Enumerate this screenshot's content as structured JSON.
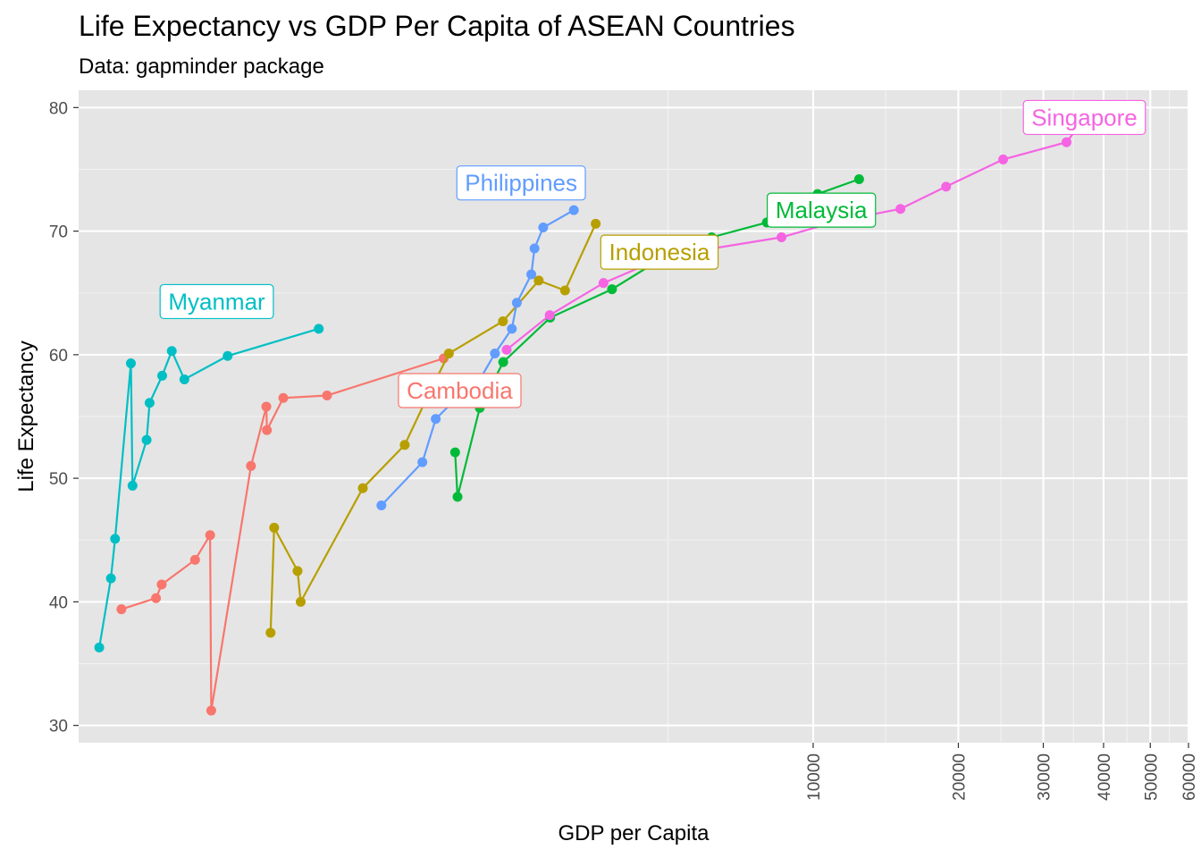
{
  "chart_data": {
    "type": "line",
    "title": "Life Expectancy vs GDP Per Capita of ASEAN Countries",
    "subtitle": "Data: gapminder package",
    "xlabel": "GDP per Capita",
    "ylabel": "Life Expectancy",
    "x_scale": "log10",
    "xlim": [
      300,
      60000
    ],
    "ylim": [
      28.6,
      81.4
    ],
    "x_ticks": [
      10000,
      20000,
      30000,
      40000,
      50000,
      60000
    ],
    "x_tick_labels": [
      "10000",
      "20000",
      "30000",
      "40000",
      "50000",
      "60000"
    ],
    "y_ticks": [
      30,
      40,
      50,
      60,
      70,
      80
    ],
    "y_tick_labels": [
      "30",
      "40",
      "50",
      "60",
      "70",
      "80"
    ],
    "grid": true,
    "legend": "none",
    "series": [
      {
        "name": "Cambodia",
        "label": "Cambodia",
        "color": "#F8766D",
        "label_at": [
          1850,
          57.1
        ],
        "points": [
          [
            368,
            39.4
          ],
          [
            434,
            40.3
          ],
          [
            446,
            41.4
          ],
          [
            523,
            43.4
          ],
          [
            562,
            45.4
          ],
          [
            565,
            31.2
          ],
          [
            683,
            51.0
          ],
          [
            735,
            55.8
          ],
          [
            737,
            53.9
          ],
          [
            797,
            56.5
          ],
          [
            982,
            56.7
          ],
          [
            1714,
            59.7
          ]
        ]
      },
      {
        "name": "Indonesia",
        "label": "Indonesia",
        "color": "#B79F00",
        "label_at": [
          4800,
          68.3
        ],
        "points": [
          [
            750,
            37.5
          ],
          [
            763,
            46.0
          ],
          [
            853,
            42.5
          ],
          [
            866,
            40.0
          ],
          [
            1165,
            49.2
          ],
          [
            1423,
            52.7
          ],
          [
            1569,
            56.2
          ],
          [
            1757,
            60.1
          ],
          [
            2274,
            62.7
          ],
          [
            2698,
            66.0
          ],
          [
            3059,
            65.2
          ],
          [
            3541,
            70.6
          ]
        ]
      },
      {
        "name": "Malaysia",
        "label": "Malaysia",
        "color": "#00BA38",
        "label_at": [
          10400,
          71.7
        ],
        "points": [
          [
            1831,
            48.5
          ],
          [
            1810,
            52.1
          ],
          [
            2036,
            55.7
          ],
          [
            2277,
            59.4
          ],
          [
            2849,
            63.0
          ],
          [
            3828,
            65.3
          ],
          [
            4954,
            68.0
          ],
          [
            6160,
            69.5
          ],
          [
            8017,
            70.7
          ],
          [
            10131,
            71.9
          ],
          [
            10212,
            73.0
          ],
          [
            12452,
            74.2
          ]
        ]
      },
      {
        "name": "Myanmar",
        "label": "Myanmar",
        "color": "#00BFC4",
        "label_at": [
          580,
          64.3
        ],
        "points": [
          [
            331,
            36.3
          ],
          [
            350,
            41.9
          ],
          [
            357,
            45.1
          ],
          [
            385,
            59.3
          ],
          [
            388,
            49.4
          ],
          [
            415,
            53.1
          ],
          [
            421,
            56.1
          ],
          [
            447,
            58.3
          ],
          [
            468,
            60.3
          ],
          [
            497,
            58.0
          ],
          [
            611,
            59.9
          ],
          [
            944,
            62.1
          ]
        ]
      },
      {
        "name": "Philippines",
        "label": "Philippines",
        "color": "#619CFF",
        "label_at": [
          2480,
          73.9
        ],
        "points": [
          [
            1273,
            47.8
          ],
          [
            1548,
            51.3
          ],
          [
            1650,
            54.8
          ],
          [
            1814,
            56.4
          ],
          [
            2044,
            58.1
          ],
          [
            2189,
            60.1
          ],
          [
            2373,
            62.1
          ],
          [
            2430,
            64.2
          ],
          [
            2604,
            66.5
          ],
          [
            2644,
            68.6
          ],
          [
            2756,
            70.3
          ],
          [
            3190,
            71.7
          ]
        ]
      },
      {
        "name": "Singapore",
        "label": "Singapore",
        "color": "#F564E3",
        "label_at": [
          36500,
          79.2
        ],
        "points": [
          [
            2315,
            60.4
          ],
          [
            2843,
            63.2
          ],
          [
            3675,
            65.8
          ],
          [
            4977,
            68.0
          ],
          [
            8597,
            69.5
          ],
          [
            11210,
            70.8
          ],
          [
            15169,
            71.8
          ],
          [
            18862,
            73.6
          ],
          [
            24769,
            75.8
          ],
          [
            33519,
            77.2
          ],
          [
            36023,
            78.8
          ],
          [
            47143,
            80.0
          ]
        ]
      }
    ]
  }
}
